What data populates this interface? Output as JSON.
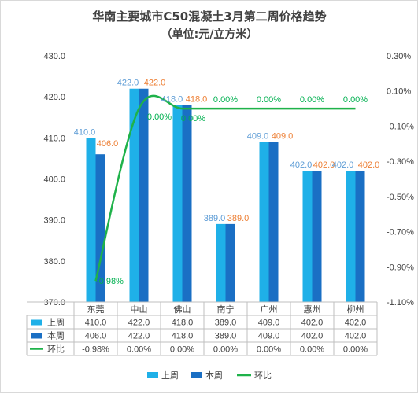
{
  "chart_data": {
    "type": "bar",
    "title": "华南主要城市C50混凝土3月第二周价格趋势",
    "subtitle": "（单位:元/立方米）",
    "categories": [
      "东莞",
      "中山",
      "佛山",
      "南宁",
      "广州",
      "惠州",
      "柳州"
    ],
    "series": [
      {
        "name": "上周",
        "type": "bar",
        "values": [
          410.0,
          422.0,
          418.0,
          389.0,
          409.0,
          402.0,
          402.0
        ],
        "labels": [
          "410.0",
          "422.0",
          "418.0",
          "389.0",
          "409.0",
          "402.0",
          "402.0"
        ],
        "color": "#1fb0e8",
        "label_color": "#5b9bd5"
      },
      {
        "name": "本周",
        "type": "bar",
        "values": [
          406.0,
          422.0,
          418.0,
          389.0,
          409.0,
          402.0,
          402.0
        ],
        "labels": [
          "406.0",
          "422.0",
          "418.0",
          "389.0",
          "409.0",
          "402.0",
          "402.0"
        ],
        "color": "#1a6fc4",
        "label_color": "#ed7d31"
      },
      {
        "name": "环比",
        "type": "line",
        "axis": "right",
        "values": [
          -0.98,
          0.0,
          0.0,
          0.0,
          0.0,
          0.0,
          0.0
        ],
        "labels": [
          "-0.98%",
          "0.00%",
          "0.00%",
          "0.00%",
          "0.00%",
          "0.00%",
          "0.00%"
        ],
        "color": "#1fb24a",
        "label_color": "#00b050"
      }
    ],
    "y_left": {
      "min": 370,
      "max": 430,
      "step": 10,
      "tick_labels": [
        "370.0",
        "380.0",
        "390.0",
        "400.0",
        "410.0",
        "420.0",
        "430.0"
      ]
    },
    "y_right": {
      "min": -1.1,
      "max": 0.3,
      "step": 0.2,
      "tick_labels": [
        "-1.10%",
        "-0.90%",
        "-0.70%",
        "-0.50%",
        "-0.30%",
        "-0.10%",
        "0.10%",
        "0.30%"
      ]
    },
    "table": {
      "rows": [
        {
          "name": "上周",
          "cells": [
            "410.0",
            "422.0",
            "418.0",
            "389.0",
            "409.0",
            "402.0",
            "402.0"
          ]
        },
        {
          "name": "本周",
          "cells": [
            "406.0",
            "422.0",
            "418.0",
            "389.0",
            "409.0",
            "402.0",
            "402.0"
          ]
        },
        {
          "name": "环比",
          "cells": [
            "-0.98%",
            "0.00%",
            "0.00%",
            "0.00%",
            "0.00%",
            "0.00%",
            "0.00%"
          ]
        }
      ]
    },
    "legend": {
      "position": "bottom",
      "items": [
        "上周",
        "本周",
        "环比"
      ]
    },
    "grid": false
  }
}
